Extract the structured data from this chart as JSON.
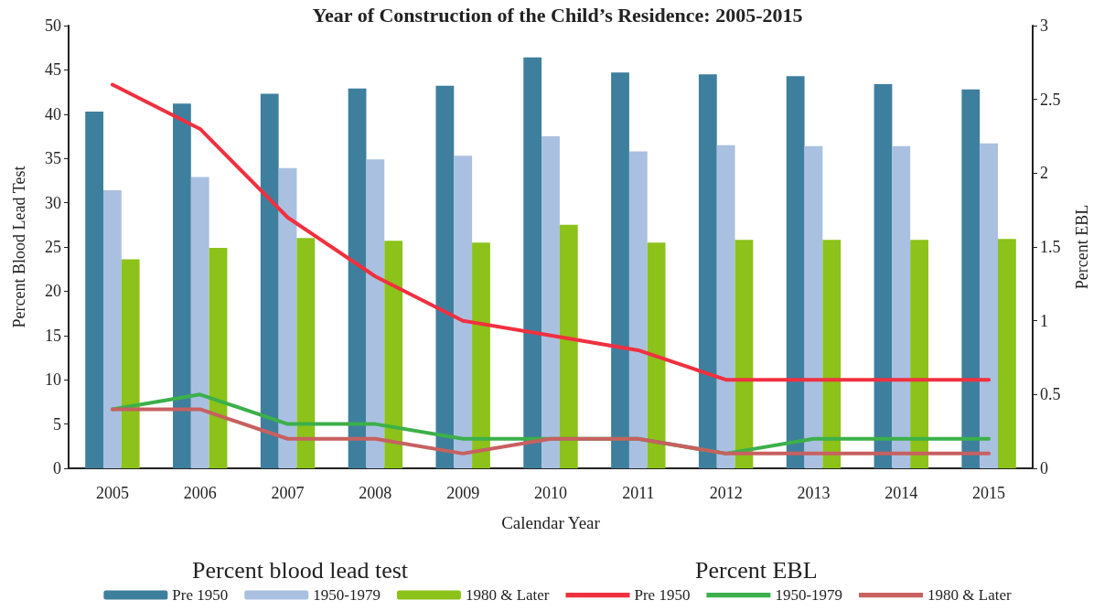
{
  "chart_data": {
    "type": "bar",
    "title": "Year of Construction of the Child’s Residence: 2005-2015",
    "xlabel": "Calendar Year",
    "ylabel": "Percent Blood Lead Test",
    "y2label": "Percent EBL",
    "categories": [
      "2005",
      "2006",
      "2007",
      "2008",
      "2009",
      "2010",
      "2011",
      "2012",
      "2013",
      "2014",
      "2015"
    ],
    "series": [
      {
        "name": "Pre 1950",
        "color": "#3e7f9e",
        "values": [
          40.3,
          41.2,
          42.3,
          42.9,
          43.2,
          46.4,
          44.7,
          44.5,
          44.3,
          43.4,
          42.8
        ]
      },
      {
        "name": "1950-1979",
        "color": "#a9c0e0",
        "values": [
          31.4,
          32.9,
          33.9,
          34.9,
          35.3,
          37.5,
          35.8,
          36.5,
          36.4,
          36.4,
          36.7
        ]
      },
      {
        "name": "1980 & Later",
        "color": "#8cc21a",
        "values": [
          23.6,
          24.9,
          26.0,
          25.7,
          25.5,
          27.5,
          25.5,
          25.8,
          25.8,
          25.8,
          25.9
        ]
      },
      {
        "name": "Pre 1950",
        "type": "line",
        "axis": "y2",
        "color": "#f0303f",
        "values": [
          2.6,
          2.3,
          1.7,
          1.3,
          1.0,
          0.9,
          0.8,
          0.6,
          0.6,
          0.6,
          0.6
        ]
      },
      {
        "name": "1950-1979",
        "type": "line",
        "axis": "y2",
        "color": "#3cb04a",
        "values": [
          0.4,
          0.5,
          0.3,
          0.3,
          0.2,
          0.2,
          0.2,
          0.1,
          0.2,
          0.2,
          0.2
        ]
      },
      {
        "name": "1980 & Later",
        "type": "line",
        "axis": "y2",
        "color": "#c86060",
        "values": [
          0.4,
          0.4,
          0.2,
          0.2,
          0.1,
          0.2,
          0.2,
          0.1,
          0.1,
          0.1,
          0.1
        ]
      }
    ],
    "ylim": [
      0,
      50
    ],
    "yticks": [
      0,
      5,
      10,
      15,
      20,
      25,
      30,
      35,
      40,
      45,
      50
    ],
    "y2lim": [
      0,
      3
    ],
    "y2ticks": [
      0,
      0.5,
      1,
      1.5,
      2,
      2.5,
      3
    ],
    "annotations": [
      "Percent blood lead test",
      "Percent EBL"
    ],
    "legend": "bottom",
    "grid": false,
    "marker": "none",
    "line_style": "solid"
  }
}
